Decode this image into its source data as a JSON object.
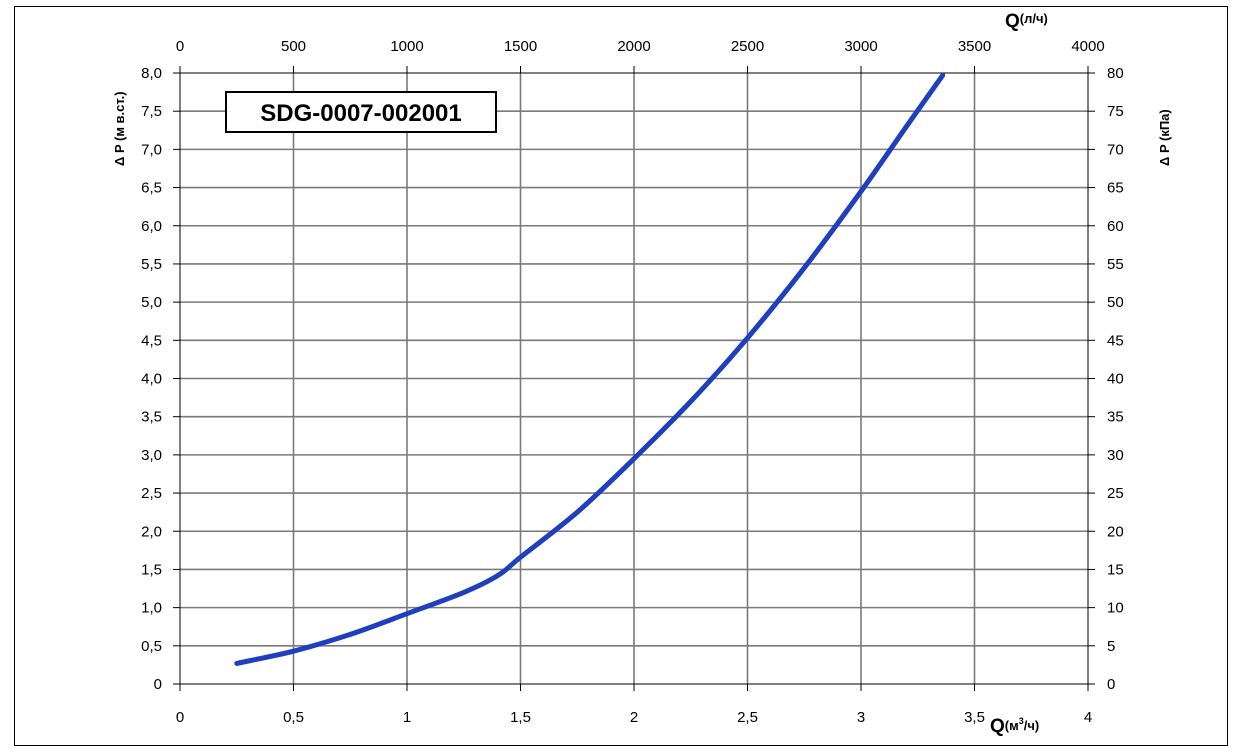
{
  "chart_data": {
    "type": "line",
    "title": "SDG-0007-002001",
    "x_bottom": {
      "label_main": "Q",
      "label_unit_pre": "(м",
      "label_unit_sup": "3",
      "label_unit_post": "/ч)",
      "range": [
        0,
        4
      ],
      "ticks": [
        "0",
        "0,5",
        "1",
        "1,5",
        "2",
        "2,5",
        "3",
        "3,5",
        "4"
      ]
    },
    "x_top": {
      "label_main": "Q",
      "label_unit": "(л/ч)",
      "range": [
        0,
        4000
      ],
      "ticks": [
        "0",
        "500",
        "1000",
        "1500",
        "2000",
        "2500",
        "3000",
        "3500",
        "4000"
      ]
    },
    "y_left": {
      "label": "Δ P (м в.ст.)",
      "range": [
        0,
        8
      ],
      "ticks": [
        "0",
        "0,5",
        "1,0",
        "1,5",
        "2,0",
        "2,5",
        "3,0",
        "3,5",
        "4,0",
        "4,5",
        "5,0",
        "5,5",
        "6,0",
        "6,5",
        "7,0",
        "7,5",
        "8,0"
      ]
    },
    "y_right": {
      "label": "Δ P (кПа)",
      "range": [
        0,
        80
      ],
      "ticks": [
        "0",
        "5",
        "10",
        "15",
        "20",
        "25",
        "30",
        "35",
        "40",
        "45",
        "50",
        "55",
        "60",
        "65",
        "70",
        "75",
        "80"
      ]
    },
    "grid": true,
    "series": [
      {
        "color": "#1f3fbf",
        "x": [
          0.25,
          0.5,
          0.75,
          1.0,
          1.25,
          1.4,
          1.5,
          1.75,
          2.0,
          2.25,
          2.5,
          2.75,
          3.0,
          3.2,
          3.36
        ],
        "y": [
          0.27,
          0.43,
          0.65,
          0.92,
          1.2,
          1.42,
          1.66,
          2.25,
          2.95,
          3.7,
          4.53,
          5.45,
          6.45,
          7.3,
          7.97
        ]
      }
    ]
  }
}
